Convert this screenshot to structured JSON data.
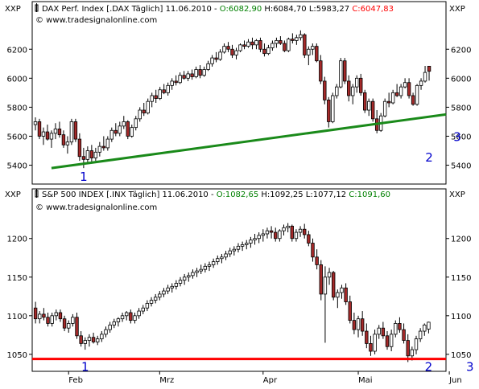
{
  "chart_data": [
    {
      "type": "candlestick",
      "panel_label": "XXP",
      "header_symbol": "DAX Perf. Index [.DAX",
      "header_period": "Täglich]",
      "header_date": "11.06.2010",
      "ohlc_labels": {
        "open": "O:6082,90",
        "high": "H:6084,70",
        "low": "L:5983,27",
        "close": "C:6047,83"
      },
      "watermark": "© www.tradesignalonline.com",
      "ylim": [
        5270,
        6340
      ],
      "y_ticks": [
        "6200",
        "6000",
        "5800",
        "5600",
        "5400"
      ],
      "y_tick_values": [
        6200,
        6000,
        5800,
        5600,
        5400
      ],
      "trendline": {
        "color": "#1a8a1a",
        "from_day": 4,
        "from_value": 5380,
        "to_day": 118,
        "to_value": 5810
      },
      "markers": [
        "1",
        "2",
        "3"
      ],
      "marker_points": [
        {
          "label": "1",
          "day": 12,
          "value": 5330
        },
        {
          "label": "2",
          "day": 98,
          "value": 5465
        },
        {
          "label": "3",
          "day": 105,
          "value": 5605
        }
      ],
      "candles": [
        [
          5680,
          5730,
          5640,
          5700
        ],
        [
          5700,
          5720,
          5580,
          5600
        ],
        [
          5600,
          5660,
          5540,
          5630
        ],
        [
          5630,
          5680,
          5570,
          5580
        ],
        [
          5580,
          5640,
          5520,
          5620
        ],
        [
          5620,
          5690,
          5580,
          5650
        ],
        [
          5650,
          5700,
          5590,
          5610
        ],
        [
          5610,
          5640,
          5520,
          5540
        ],
        [
          5540,
          5600,
          5480,
          5560
        ],
        [
          5560,
          5720,
          5540,
          5700
        ],
        [
          5700,
          5720,
          5560,
          5580
        ],
        [
          5580,
          5620,
          5430,
          5460
        ],
        [
          5460,
          5520,
          5380,
          5440
        ],
        [
          5440,
          5530,
          5420,
          5500
        ],
        [
          5500,
          5540,
          5420,
          5450
        ],
        [
          5450,
          5520,
          5430,
          5490
        ],
        [
          5490,
          5560,
          5460,
          5530
        ],
        [
          5530,
          5600,
          5500,
          5520
        ],
        [
          5520,
          5600,
          5500,
          5580
        ],
        [
          5580,
          5660,
          5560,
          5640
        ],
        [
          5640,
          5690,
          5600,
          5620
        ],
        [
          5620,
          5700,
          5600,
          5670
        ],
        [
          5670,
          5740,
          5650,
          5700
        ],
        [
          5700,
          5710,
          5580,
          5600
        ],
        [
          5600,
          5680,
          5590,
          5660
        ],
        [
          5660,
          5740,
          5640,
          5720
        ],
        [
          5720,
          5800,
          5700,
          5780
        ],
        [
          5780,
          5830,
          5740,
          5760
        ],
        [
          5760,
          5860,
          5750,
          5840
        ],
        [
          5840,
          5900,
          5800,
          5880
        ],
        [
          5880,
          5920,
          5830,
          5860
        ],
        [
          5860,
          5940,
          5850,
          5920
        ],
        [
          5920,
          5960,
          5890,
          5900
        ],
        [
          5900,
          5970,
          5880,
          5950
        ],
        [
          5950,
          6000,
          5920,
          5980
        ],
        [
          5980,
          6020,
          5950,
          5970
        ],
        [
          5970,
          6040,
          5960,
          6020
        ],
        [
          6020,
          6050,
          5990,
          6000
        ],
        [
          6000,
          6050,
          5980,
          6030
        ],
        [
          6030,
          6060,
          5990,
          6010
        ],
        [
          6010,
          6080,
          6000,
          6060
        ],
        [
          6060,
          6090,
          6000,
          6020
        ],
        [
          6020,
          6080,
          6010,
          6060
        ],
        [
          6060,
          6120,
          6050,
          6100
        ],
        [
          6100,
          6160,
          6080,
          6140
        ],
        [
          6140,
          6180,
          6110,
          6130
        ],
        [
          6130,
          6200,
          6120,
          6180
        ],
        [
          6180,
          6240,
          6170,
          6220
        ],
        [
          6220,
          6250,
          6180,
          6200
        ],
        [
          6200,
          6230,
          6140,
          6160
        ],
        [
          6160,
          6210,
          6130,
          6190
        ],
        [
          6190,
          6240,
          6180,
          6230
        ],
        [
          6230,
          6260,
          6200,
          6220
        ],
        [
          6220,
          6270,
          6210,
          6250
        ],
        [
          6250,
          6280,
          6200,
          6230
        ],
        [
          6230,
          6270,
          6200,
          6260
        ],
        [
          6260,
          6280,
          6180,
          6200
        ],
        [
          6200,
          6240,
          6150,
          6170
        ],
        [
          6170,
          6230,
          6160,
          6210
        ],
        [
          6210,
          6260,
          6190,
          6240
        ],
        [
          6240,
          6280,
          6210,
          6260
        ],
        [
          6260,
          6290,
          6230,
          6240
        ],
        [
          6240,
          6260,
          6180,
          6190
        ],
        [
          6190,
          6280,
          6180,
          6270
        ],
        [
          6270,
          6310,
          6240,
          6260
        ],
        [
          6260,
          6300,
          6230,
          6280
        ],
        [
          6280,
          6330,
          6260,
          6300
        ],
        [
          6300,
          6310,
          6140,
          6160
        ],
        [
          6160,
          6220,
          6090,
          6200
        ],
        [
          6200,
          6240,
          6160,
          6220
        ],
        [
          6220,
          6240,
          6110,
          6120
        ],
        [
          6120,
          6160,
          5960,
          5980
        ],
        [
          5980,
          6010,
          5820,
          5850
        ],
        [
          5850,
          5870,
          5660,
          5700
        ],
        [
          5700,
          5900,
          5690,
          5880
        ],
        [
          5880,
          5960,
          5860,
          5940
        ],
        [
          5940,
          6140,
          5930,
          6120
        ],
        [
          6120,
          6140,
          5960,
          5980
        ],
        [
          5980,
          6020,
          5840,
          5880
        ],
        [
          5880,
          5960,
          5820,
          5940
        ],
        [
          5940,
          6020,
          5900,
          6000
        ],
        [
          6000,
          6030,
          5880,
          5900
        ],
        [
          5900,
          5920,
          5760,
          5780
        ],
        [
          5780,
          5860,
          5740,
          5840
        ],
        [
          5840,
          5860,
          5700,
          5720
        ],
        [
          5720,
          5780,
          5620,
          5640
        ],
        [
          5640,
          5760,
          5630,
          5740
        ],
        [
          5740,
          5860,
          5730,
          5840
        ],
        [
          5840,
          5900,
          5800,
          5830
        ],
        [
          5830,
          5920,
          5820,
          5900
        ],
        [
          5900,
          5960,
          5870,
          5880
        ],
        [
          5880,
          5960,
          5860,
          5940
        ],
        [
          5940,
          6000,
          5930,
          5970
        ],
        [
          5970,
          6000,
          5860,
          5880
        ],
        [
          5880,
          5900,
          5810,
          5820
        ],
        [
          5820,
          5960,
          5810,
          5950
        ],
        [
          5950,
          6000,
          5920,
          5980
        ],
        [
          5980,
          6085,
          5970,
          6040
        ],
        [
          6082.9,
          6084.7,
          5983.27,
          6047.83
        ]
      ]
    },
    {
      "type": "candlestick",
      "panel_label": "XXP",
      "header_symbol": "S&P 500 INDEX [.INX",
      "header_period": "Täglich]",
      "header_date": "11.06.2010",
      "ohlc_labels": {
        "open": "O:1082,65",
        "high": "H:1092,25",
        "low": "L:1077,12",
        "close": "C:1091,60"
      },
      "watermark": "© www.tradesignalonline.com",
      "ylim": [
        1028,
        1232
      ],
      "y_ticks": [
        "1200",
        "1150",
        "1100",
        "1050"
      ],
      "y_tick_values": [
        1200,
        1150,
        1100,
        1050
      ],
      "support_line": {
        "color": "#ff0000",
        "value": 1044
      },
      "x_labels": [
        "Feb",
        "Mrz",
        "Apr",
        "Mai",
        "Jun"
      ],
      "x_label_days": [
        8,
        30,
        55,
        78,
        100
      ],
      "markers": [
        "1",
        "2",
        "3"
      ],
      "marker_points": [
        {
          "label": "1",
          "day": 12,
          "value": 1036
        },
        {
          "label": "2",
          "day": 95,
          "value": 1036
        },
        {
          "label": "3",
          "day": 105,
          "value": 1036
        }
      ],
      "candles": [
        [
          1110,
          1118,
          1090,
          1096
        ],
        [
          1096,
          1106,
          1090,
          1102
        ],
        [
          1102,
          1110,
          1094,
          1098
        ],
        [
          1098,
          1104,
          1086,
          1090
        ],
        [
          1090,
          1104,
          1086,
          1100
        ],
        [
          1100,
          1108,
          1094,
          1104
        ],
        [
          1104,
          1108,
          1092,
          1096
        ],
        [
          1096,
          1100,
          1080,
          1084
        ],
        [
          1084,
          1094,
          1078,
          1090
        ],
        [
          1090,
          1102,
          1086,
          1098
        ],
        [
          1098,
          1104,
          1070,
          1074
        ],
        [
          1074,
          1080,
          1060,
          1064
        ],
        [
          1064,
          1072,
          1056,
          1068
        ],
        [
          1068,
          1076,
          1060,
          1072
        ],
        [
          1072,
          1078,
          1064,
          1066
        ],
        [
          1066,
          1074,
          1062,
          1070
        ],
        [
          1070,
          1080,
          1066,
          1076
        ],
        [
          1076,
          1086,
          1072,
          1082
        ],
        [
          1082,
          1092,
          1078,
          1088
        ],
        [
          1088,
          1096,
          1084,
          1092
        ],
        [
          1092,
          1098,
          1086,
          1096
        ],
        [
          1096,
          1104,
          1092,
          1100
        ],
        [
          1100,
          1106,
          1094,
          1104
        ],
        [
          1104,
          1108,
          1090,
          1094
        ],
        [
          1094,
          1104,
          1090,
          1100
        ],
        [
          1100,
          1110,
          1096,
          1106
        ],
        [
          1106,
          1114,
          1102,
          1110
        ],
        [
          1110,
          1120,
          1106,
          1116
        ],
        [
          1116,
          1124,
          1112,
          1120
        ],
        [
          1120,
          1128,
          1116,
          1124
        ],
        [
          1124,
          1132,
          1120,
          1128
        ],
        [
          1128,
          1136,
          1124,
          1132
        ],
        [
          1132,
          1140,
          1128,
          1136
        ],
        [
          1136,
          1142,
          1130,
          1138
        ],
        [
          1138,
          1146,
          1134,
          1142
        ],
        [
          1142,
          1150,
          1138,
          1146
        ],
        [
          1146,
          1154,
          1140,
          1150
        ],
        [
          1150,
          1156,
          1144,
          1152
        ],
        [
          1152,
          1160,
          1148,
          1156
        ],
        [
          1156,
          1162,
          1150,
          1158
        ],
        [
          1158,
          1166,
          1154,
          1160
        ],
        [
          1160,
          1168,
          1156,
          1164
        ],
        [
          1164,
          1170,
          1158,
          1166
        ],
        [
          1166,
          1174,
          1162,
          1170
        ],
        [
          1170,
          1178,
          1166,
          1174
        ],
        [
          1174,
          1180,
          1168,
          1176
        ],
        [
          1176,
          1184,
          1172,
          1180
        ],
        [
          1180,
          1188,
          1176,
          1184
        ],
        [
          1184,
          1190,
          1178,
          1186
        ],
        [
          1186,
          1194,
          1182,
          1190
        ],
        [
          1190,
          1196,
          1184,
          1192
        ],
        [
          1192,
          1198,
          1186,
          1194
        ],
        [
          1194,
          1202,
          1188,
          1198
        ],
        [
          1198,
          1206,
          1192,
          1200
        ],
        [
          1200,
          1208,
          1194,
          1204
        ],
        [
          1204,
          1212,
          1196,
          1206
        ],
        [
          1206,
          1214,
          1200,
          1210
        ],
        [
          1210,
          1216,
          1200,
          1208
        ],
        [
          1208,
          1214,
          1196,
          1200
        ],
        [
          1200,
          1212,
          1196,
          1210
        ],
        [
          1210,
          1218,
          1204,
          1214
        ],
        [
          1214,
          1220,
          1208,
          1216
        ],
        [
          1216,
          1218,
          1196,
          1200
        ],
        [
          1200,
          1212,
          1196,
          1208
        ],
        [
          1208,
          1216,
          1202,
          1212
        ],
        [
          1212,
          1219,
          1200,
          1205
        ],
        [
          1205,
          1210,
          1190,
          1194
        ],
        [
          1194,
          1200,
          1170,
          1176
        ],
        [
          1176,
          1186,
          1160,
          1166
        ],
        [
          1166,
          1172,
          1120,
          1128
        ],
        [
          1128,
          1164,
          1065,
          1150
        ],
        [
          1150,
          1162,
          1140,
          1156
        ],
        [
          1156,
          1158,
          1120,
          1124
        ],
        [
          1124,
          1134,
          1110,
          1130
        ],
        [
          1130,
          1140,
          1122,
          1136
        ],
        [
          1136,
          1142,
          1114,
          1118
        ],
        [
          1118,
          1126,
          1090,
          1094
        ],
        [
          1094,
          1104,
          1076,
          1082
        ],
        [
          1082,
          1100,
          1072,
          1096
        ],
        [
          1096,
          1106,
          1074,
          1080
        ],
        [
          1080,
          1090,
          1058,
          1064
        ],
        [
          1064,
          1074,
          1048,
          1054
        ],
        [
          1054,
          1082,
          1050,
          1076
        ],
        [
          1076,
          1088,
          1070,
          1084
        ],
        [
          1084,
          1092,
          1070,
          1074
        ],
        [
          1074,
          1080,
          1056,
          1060
        ],
        [
          1060,
          1082,
          1054,
          1076
        ],
        [
          1076,
          1094,
          1072,
          1090
        ],
        [
          1090,
          1098,
          1078,
          1082
        ],
        [
          1082,
          1090,
          1064,
          1068
        ],
        [
          1068,
          1076,
          1040,
          1048
        ],
        [
          1048,
          1060,
          1042,
          1056
        ],
        [
          1056,
          1074,
          1050,
          1070
        ],
        [
          1070,
          1084,
          1066,
          1080
        ],
        [
          1080,
          1090,
          1074,
          1088
        ],
        [
          1082.65,
          1092.25,
          1077.12,
          1091.6
        ]
      ]
    }
  ],
  "colors": {
    "up": "#ffffff",
    "down": "#a52a2a",
    "outline": "#000000",
    "ohlc_up": "#008000",
    "ohlc_down": "#ff0000",
    "marker": "#0000cc",
    "axis_text": "#000000"
  }
}
